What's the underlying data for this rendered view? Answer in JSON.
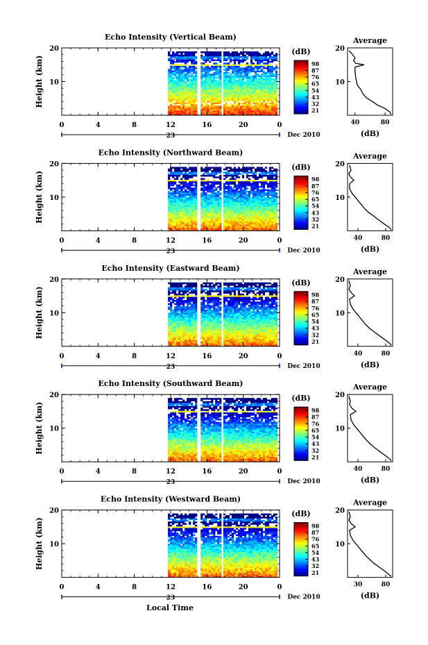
{
  "figure": {
    "bottom_label": "Local Time",
    "date_label": "Dec 2010",
    "day_label": "23"
  },
  "chart_data": [
    {
      "type": "heatmap",
      "title": "Echo Intensity (Vertical Beam)",
      "ylabel": "Height (km)",
      "xticks": [
        "0",
        "4",
        "8",
        "12",
        "16",
        "20",
        "0"
      ],
      "yticks": [
        "20",
        "10"
      ],
      "xlim": [
        0,
        24
      ],
      "ylim": [
        0,
        20
      ],
      "data_hours": [
        [
          11.7,
          14.8
        ],
        [
          15.3,
          17.5
        ],
        [
          17.8,
          23.7
        ]
      ],
      "colorbar": {
        "label": "(dB)",
        "ticks": [
          "98",
          "87",
          "76",
          "65",
          "54",
          "43",
          "32",
          "21"
        ]
      },
      "profile": {
        "title": "Average",
        "xlabel": "(dB)",
        "xticks": [
          "40",
          "80"
        ],
        "xlim": [
          30,
          90
        ],
        "yticks": [
          "20",
          "10"
        ],
        "points": [
          [
            32,
            19.2
          ],
          [
            36,
            18.2
          ],
          [
            40,
            17.0
          ],
          [
            38,
            16.2
          ],
          [
            41,
            15.4
          ],
          [
            52,
            15.0
          ],
          [
            40,
            14.3
          ],
          [
            40,
            13.0
          ],
          [
            41,
            11.0
          ],
          [
            43,
            9.0
          ],
          [
            48,
            7.5
          ],
          [
            50,
            6.5
          ],
          [
            55,
            5.2
          ],
          [
            62,
            4.2
          ],
          [
            70,
            3.0
          ],
          [
            80,
            2.0
          ],
          [
            86,
            1.0
          ],
          [
            88,
            0.3
          ]
        ]
      }
    },
    {
      "type": "heatmap",
      "title": "Echo Intensity (Northward Beam)",
      "ylabel": "Height (km)",
      "xticks": [
        "0",
        "4",
        "8",
        "12",
        "16",
        "20",
        "0"
      ],
      "yticks": [
        "20",
        "10"
      ],
      "xlim": [
        0,
        24
      ],
      "ylim": [
        0,
        20
      ],
      "data_hours": [
        [
          11.7,
          14.8
        ],
        [
          15.3,
          17.5
        ],
        [
          17.8,
          23.7
        ]
      ],
      "colorbar": {
        "label": "(dB)",
        "ticks": [
          "98",
          "87",
          "76",
          "65",
          "54",
          "43",
          "32",
          "21"
        ]
      },
      "profile": {
        "title": "Average",
        "xlabel": "(dB)",
        "xticks": [
          "40",
          "80"
        ],
        "xlim": [
          25,
          90
        ],
        "yticks": [
          "20",
          "10"
        ],
        "points": [
          [
            28,
            19.5
          ],
          [
            30,
            18.0
          ],
          [
            27,
            17.0
          ],
          [
            29,
            16.0
          ],
          [
            34,
            15.0
          ],
          [
            28,
            14.0
          ],
          [
            28,
            12.5
          ],
          [
            32,
            11.0
          ],
          [
            38,
            9.5
          ],
          [
            44,
            8.0
          ],
          [
            50,
            6.5
          ],
          [
            55,
            5.5
          ],
          [
            62,
            4.5
          ],
          [
            70,
            3.2
          ],
          [
            78,
            2.0
          ],
          [
            85,
            1.0
          ],
          [
            88,
            0.3
          ]
        ]
      }
    },
    {
      "type": "heatmap",
      "title": "Echo Intensity (Eastward Beam)",
      "ylabel": "Height (km)",
      "xticks": [
        "0",
        "4",
        "8",
        "12",
        "16",
        "20",
        "0"
      ],
      "yticks": [
        "20",
        "10"
      ],
      "xlim": [
        0,
        24
      ],
      "ylim": [
        0,
        20
      ],
      "data_hours": [
        [
          11.7,
          14.8
        ],
        [
          15.3,
          17.5
        ],
        [
          17.8,
          23.7
        ]
      ],
      "colorbar": {
        "label": "(dB)",
        "ticks": [
          "98",
          "87",
          "76",
          "65",
          "54",
          "43",
          "32",
          "21"
        ]
      },
      "profile": {
        "title": "Average",
        "xlabel": "(dB)",
        "xticks": [
          "40",
          "80"
        ],
        "xlim": [
          25,
          90
        ],
        "yticks": [
          "20",
          "10"
        ],
        "points": [
          [
            27,
            19.5
          ],
          [
            29,
            18.0
          ],
          [
            27,
            17.0
          ],
          [
            30,
            16.0
          ],
          [
            35,
            15.0
          ],
          [
            28,
            14.0
          ],
          [
            29,
            12.5
          ],
          [
            33,
            11.0
          ],
          [
            39,
            9.5
          ],
          [
            45,
            8.0
          ],
          [
            51,
            6.5
          ],
          [
            57,
            5.3
          ],
          [
            64,
            4.2
          ],
          [
            72,
            3.0
          ],
          [
            80,
            1.8
          ],
          [
            86,
            0.8
          ],
          [
            88,
            0.3
          ]
        ]
      }
    },
    {
      "type": "heatmap",
      "title": "Echo Intensity (Southward Beam)",
      "ylabel": "Height (km)",
      "xticks": [
        "0",
        "4",
        "8",
        "12",
        "16",
        "20",
        "0"
      ],
      "yticks": [
        "20",
        "10"
      ],
      "xlim": [
        0,
        24
      ],
      "ylim": [
        0,
        20
      ],
      "data_hours": [
        [
          11.7,
          14.8
        ],
        [
          15.3,
          17.5
        ],
        [
          17.8,
          23.7
        ]
      ],
      "colorbar": {
        "label": "(dB)",
        "ticks": [
          "98",
          "87",
          "76",
          "65",
          "54",
          "43",
          "32",
          "21"
        ]
      },
      "profile": {
        "title": "Average",
        "xlabel": "(dB)",
        "xticks": [
          "40",
          "80"
        ],
        "xlim": [
          25,
          90
        ],
        "yticks": [
          "20",
          "10"
        ],
        "points": [
          [
            27,
            19.5
          ],
          [
            29,
            18.0
          ],
          [
            28,
            17.0
          ],
          [
            31,
            16.0
          ],
          [
            37,
            15.0
          ],
          [
            29,
            14.0
          ],
          [
            30,
            12.5
          ],
          [
            34,
            11.0
          ],
          [
            40,
            9.5
          ],
          [
            46,
            8.0
          ],
          [
            52,
            6.5
          ],
          [
            58,
            5.3
          ],
          [
            64,
            4.2
          ],
          [
            72,
            3.0
          ],
          [
            80,
            1.8
          ],
          [
            86,
            0.8
          ],
          [
            88,
            0.3
          ]
        ]
      }
    },
    {
      "type": "heatmap",
      "title": "Echo Intensity (Westward Beam)",
      "ylabel": "Height (km)",
      "xticks": [
        "0",
        "4",
        "8",
        "12",
        "16",
        "20",
        "0"
      ],
      "yticks": [
        "20",
        "10"
      ],
      "xlim": [
        0,
        24
      ],
      "ylim": [
        0,
        20
      ],
      "data_hours": [
        [
          11.7,
          14.8
        ],
        [
          15.3,
          17.5
        ],
        [
          17.8,
          23.7
        ]
      ],
      "colorbar": {
        "label": "(dB)",
        "ticks": [
          "98",
          "87",
          "76",
          "65",
          "54",
          "43",
          "32",
          "21"
        ]
      },
      "profile": {
        "title": "Average",
        "xlabel": "(dB)",
        "xticks": [
          "30",
          "80"
        ],
        "xlim": [
          25,
          90
        ],
        "yticks": [
          "20",
          "10"
        ],
        "points": [
          [
            27,
            19.5
          ],
          [
            29,
            18.0
          ],
          [
            27,
            17.0
          ],
          [
            30,
            16.0
          ],
          [
            36,
            15.0
          ],
          [
            28,
            14.0
          ],
          [
            29,
            12.5
          ],
          [
            33,
            11.0
          ],
          [
            39,
            9.5
          ],
          [
            45,
            8.0
          ],
          [
            51,
            6.5
          ],
          [
            57,
            5.3
          ],
          [
            63,
            4.2
          ],
          [
            71,
            3.0
          ],
          [
            79,
            1.8
          ],
          [
            85,
            0.8
          ],
          [
            88,
            0.3
          ]
        ]
      }
    }
  ]
}
